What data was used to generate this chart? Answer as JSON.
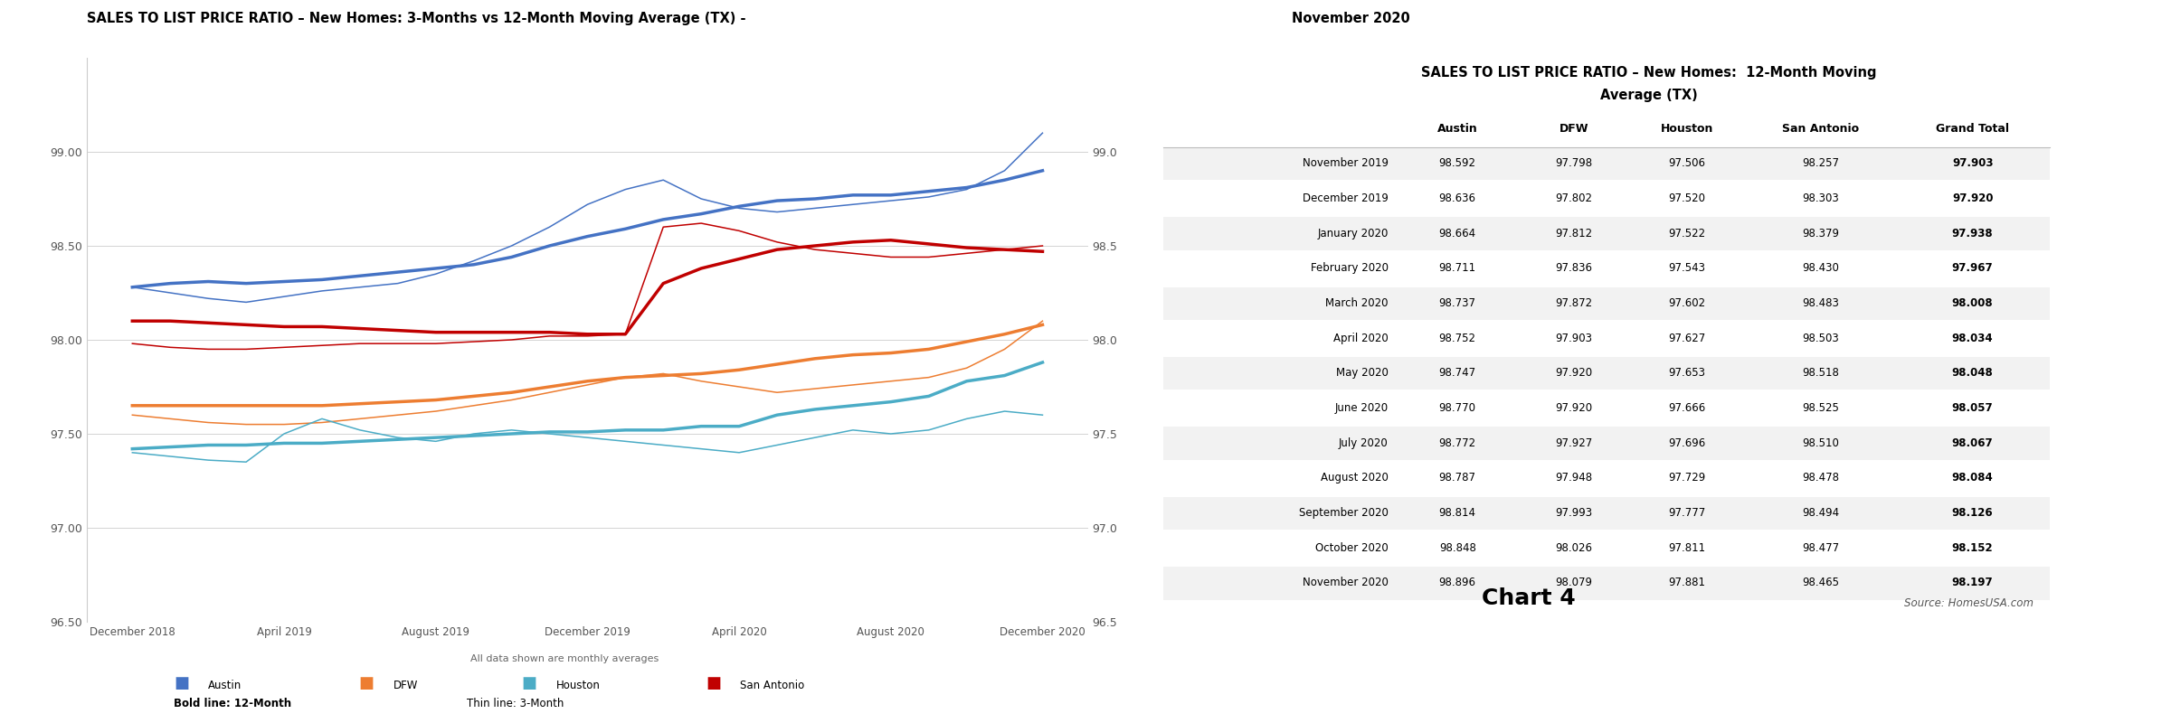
{
  "chart_title": "SALES TO LIST PRICE RATIO – New Homes: 3-Months vs 12-Month Moving Average (TX) - ",
  "chart_title_highlight": "November 2020",
  "table_title_line1": "SALES TO LIST PRICE RATIO – New Homes:  12-Month Moving",
  "table_title_line2": "Average (TX)",
  "chart4_label": "Chart 4",
  "source_label": "Source: HomesUSA.com",
  "footnote": "All data shown are monthly averages",
  "legend_note_bold": "Bold line: 12-Month",
  "legend_note_thin": "Thin line: 3-Month",
  "colors": {
    "Austin": "#4472C4",
    "DFW": "#ED7D31",
    "Houston": "#4BACC6",
    "San_Antonio": "#C00000"
  },
  "months_labels": [
    "December 2018",
    "April 2019",
    "August 2019",
    "December 2019",
    "April 2020",
    "August 2020",
    "December 2020"
  ],
  "ylim": [
    96.5,
    99.5
  ],
  "yticks": [
    96.5,
    97.0,
    97.5,
    98.0,
    98.5,
    99.0
  ],
  "table_rows": [
    {
      "month": "November 2019",
      "austin": 98.592,
      "dfw": 97.798,
      "houston": 97.506,
      "san_antonio": 98.257,
      "grand_total": 97.903
    },
    {
      "month": "December 2019",
      "austin": 98.636,
      "dfw": 97.802,
      "houston": 97.52,
      "san_antonio": 98.303,
      "grand_total": 97.92
    },
    {
      "month": "January 2020",
      "austin": 98.664,
      "dfw": 97.812,
      "houston": 97.522,
      "san_antonio": 98.379,
      "grand_total": 97.938
    },
    {
      "month": "February 2020",
      "austin": 98.711,
      "dfw": 97.836,
      "houston": 97.543,
      "san_antonio": 98.43,
      "grand_total": 97.967
    },
    {
      "month": "March 2020",
      "austin": 98.737,
      "dfw": 97.872,
      "houston": 97.602,
      "san_antonio": 98.483,
      "grand_total": 98.008
    },
    {
      "month": "April 2020",
      "austin": 98.752,
      "dfw": 97.903,
      "houston": 97.627,
      "san_antonio": 98.503,
      "grand_total": 98.034
    },
    {
      "month": "May 2020",
      "austin": 98.747,
      "dfw": 97.92,
      "houston": 97.653,
      "san_antonio": 98.518,
      "grand_total": 98.048
    },
    {
      "month": "June 2020",
      "austin": 98.77,
      "dfw": 97.92,
      "houston": 97.666,
      "san_antonio": 98.525,
      "grand_total": 98.057
    },
    {
      "month": "July 2020",
      "austin": 98.772,
      "dfw": 97.927,
      "houston": 97.696,
      "san_antonio": 98.51,
      "grand_total": 98.067
    },
    {
      "month": "August 2020",
      "austin": 98.787,
      "dfw": 97.948,
      "houston": 97.729,
      "san_antonio": 98.478,
      "grand_total": 98.084
    },
    {
      "month": "September 2020",
      "austin": 98.814,
      "dfw": 97.993,
      "houston": 97.777,
      "san_antonio": 98.494,
      "grand_total": 98.126
    },
    {
      "month": "October 2020",
      "austin": 98.848,
      "dfw": 98.026,
      "houston": 97.811,
      "san_antonio": 98.477,
      "grand_total": 98.152
    },
    {
      "month": "November 2020",
      "austin": 98.896,
      "dfw": 98.079,
      "houston": 97.881,
      "san_antonio": 98.465,
      "grand_total": 98.197
    }
  ],
  "austin_12m": [
    98.28,
    98.3,
    98.31,
    98.3,
    98.31,
    98.32,
    98.34,
    98.36,
    98.38,
    98.4,
    98.44,
    98.5,
    98.55,
    98.59,
    98.64,
    98.67,
    98.71,
    98.74,
    98.75,
    98.77,
    98.77,
    98.79,
    98.81,
    98.85,
    98.9
  ],
  "austin_3m": [
    98.28,
    98.25,
    98.22,
    98.2,
    98.23,
    98.26,
    98.28,
    98.3,
    98.35,
    98.42,
    98.5,
    98.6,
    98.72,
    98.8,
    98.85,
    98.75,
    98.7,
    98.68,
    98.7,
    98.72,
    98.74,
    98.76,
    98.8,
    98.9,
    99.1
  ],
  "dfw_12m": [
    97.65,
    97.65,
    97.65,
    97.65,
    97.65,
    97.65,
    97.66,
    97.67,
    97.68,
    97.7,
    97.72,
    97.75,
    97.78,
    97.8,
    97.81,
    97.82,
    97.84,
    97.87,
    97.9,
    97.92,
    97.93,
    97.95,
    97.99,
    98.03,
    98.08
  ],
  "dfw_3m": [
    97.6,
    97.58,
    97.56,
    97.55,
    97.55,
    97.56,
    97.58,
    97.6,
    97.62,
    97.65,
    97.68,
    97.72,
    97.76,
    97.8,
    97.82,
    97.78,
    97.75,
    97.72,
    97.74,
    97.76,
    97.78,
    97.8,
    97.85,
    97.95,
    98.1
  ],
  "houston_12m": [
    97.42,
    97.43,
    97.44,
    97.44,
    97.45,
    97.45,
    97.46,
    97.47,
    97.48,
    97.49,
    97.5,
    97.51,
    97.51,
    97.52,
    97.52,
    97.54,
    97.54,
    97.6,
    97.63,
    97.65,
    97.67,
    97.7,
    97.78,
    97.81,
    97.88
  ],
  "houston_3m": [
    97.4,
    97.38,
    97.36,
    97.35,
    97.5,
    97.58,
    97.52,
    97.48,
    97.46,
    97.5,
    97.52,
    97.5,
    97.48,
    97.46,
    97.44,
    97.42,
    97.4,
    97.44,
    97.48,
    97.52,
    97.5,
    97.52,
    97.58,
    97.62,
    97.6
  ],
  "sa_12m": [
    98.1,
    98.1,
    98.09,
    98.08,
    98.07,
    98.07,
    98.06,
    98.05,
    98.04,
    98.04,
    98.04,
    98.04,
    98.03,
    98.03,
    98.3,
    98.38,
    98.43,
    98.48,
    98.5,
    98.52,
    98.53,
    98.51,
    98.49,
    98.48,
    98.47
  ],
  "sa_3m": [
    97.98,
    97.96,
    97.95,
    97.95,
    97.96,
    97.97,
    97.98,
    97.98,
    97.98,
    97.99,
    98.0,
    98.02,
    98.02,
    98.03,
    98.6,
    98.62,
    98.58,
    98.52,
    98.48,
    98.46,
    98.44,
    98.44,
    98.46,
    98.48,
    98.5
  ]
}
